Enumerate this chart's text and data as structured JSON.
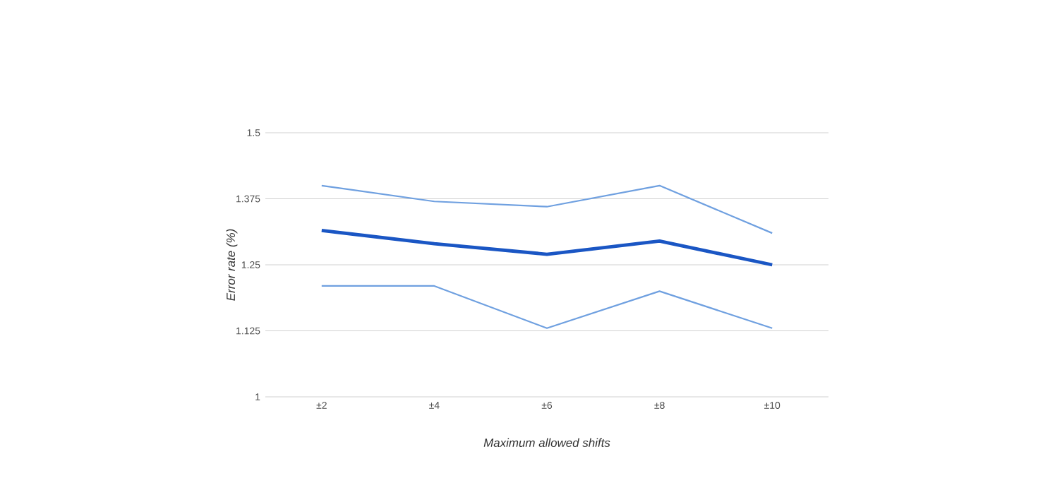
{
  "chart_data": {
    "type": "line",
    "xlabel": "Maximum allowed shifts",
    "ylabel": "Error rate (%)",
    "categories": [
      "±2",
      "±4",
      "±6",
      "±8",
      "±10"
    ],
    "series": [
      {
        "color": "#6fa0e0",
        "values": [
          1.4,
          1.37,
          1.36,
          1.4,
          1.31
        ]
      },
      {
        "color": "#1a56c4",
        "values": [
          1.315,
          1.29,
          1.27,
          1.295,
          1.25
        ]
      },
      {
        "color": "#6fa0e0",
        "values": [
          1.21,
          1.21,
          1.13,
          1.2,
          1.13
        ]
      }
    ],
    "ylim": [
      1,
      1.5
    ],
    "yticks": [
      1,
      1.125,
      1.25,
      1.375,
      1.5
    ],
    "grid": "y",
    "marker": "none",
    "line_style": "solid"
  }
}
